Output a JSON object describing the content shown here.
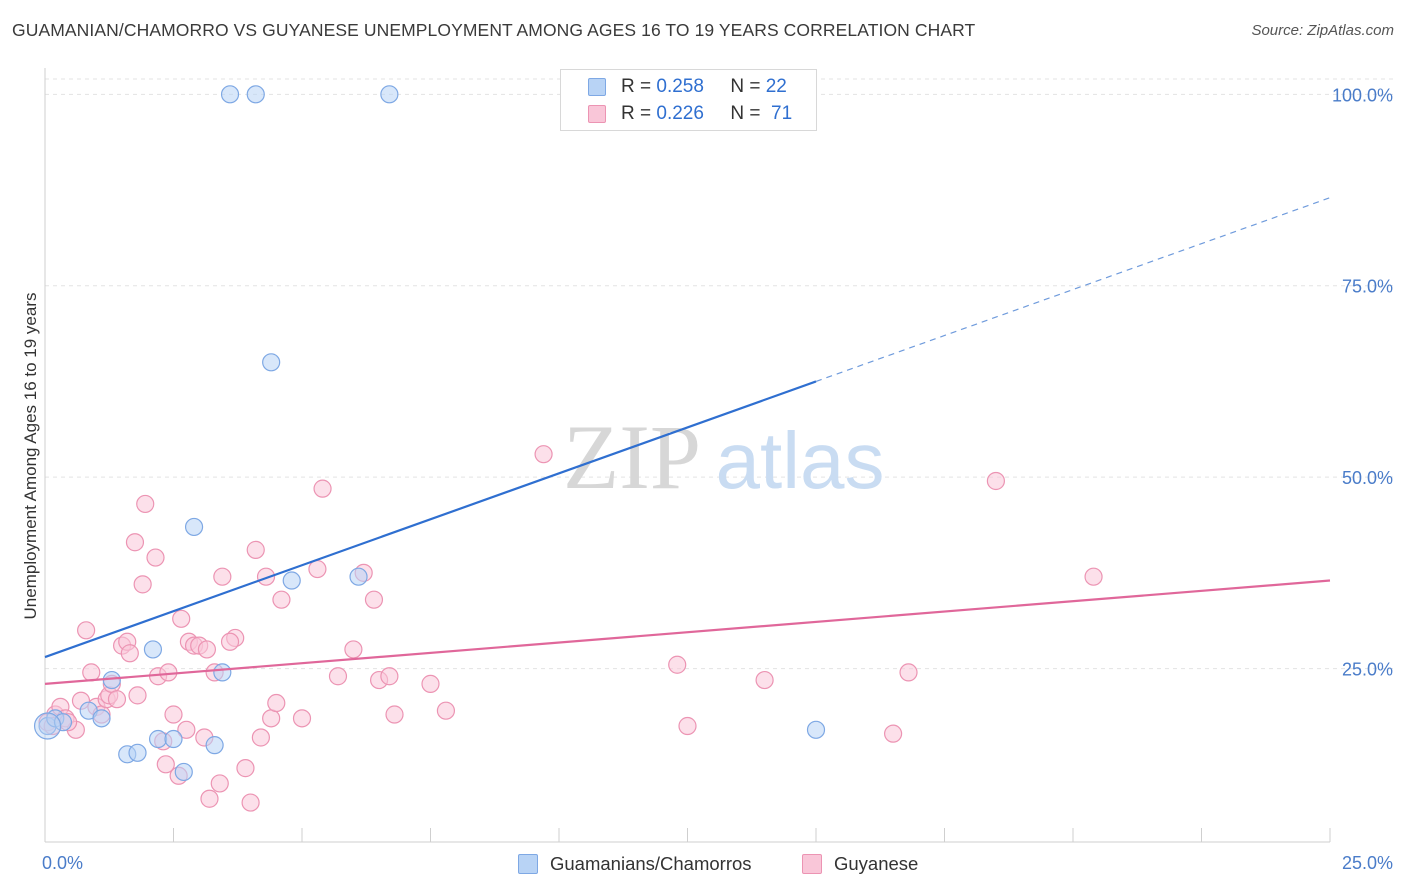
{
  "header": {
    "title": "GUAMANIAN/CHAMORRO VS GUYANESE UNEMPLOYMENT AMONG AGES 16 TO 19 YEARS CORRELATION CHART",
    "source": "Source: ZipAtlas.com"
  },
  "watermark": {
    "zip": "ZIP",
    "atlas": "atlas"
  },
  "legend": {
    "rows": [
      {
        "r_label": "R =",
        "r_value": "0.258",
        "n_label": "N =",
        "n_value": "22",
        "color": "#b8d3f5"
      },
      {
        "r_label": "R =",
        "r_value": "0.226",
        "n_label": "N =",
        "n_value": "71",
        "color": "#f9c6d8"
      }
    ]
  },
  "bottom_legend": {
    "series_a": "Guamanians/Chamorros",
    "series_b": "Guyanese"
  },
  "chart_data": {
    "type": "scatter",
    "title": "GUAMANIAN/CHAMORRO VS GUYANESE UNEMPLOYMENT AMONG AGES 16 TO 19 YEARS CORRELATION CHART",
    "xlabel": "",
    "ylabel": "Unemployment Among Ages 16 to 19 years",
    "xlim": [
      0,
      25
    ],
    "ylim": [
      0,
      102
    ],
    "x_tick_labels": [
      "0.0%",
      "25.0%"
    ],
    "y_ticks": [
      25,
      50,
      75,
      100
    ],
    "y_tick_labels": [
      "25.0%",
      "50.0%",
      "75.0%",
      "100.0%"
    ],
    "grid": true,
    "series": [
      {
        "name": "Guamanians/Chamorros",
        "color": "#7ea8e4",
        "fill": "#b8d3f5",
        "r": 0.258,
        "n": 22,
        "points": [
          [
            0.05,
            17.5
          ],
          [
            0.2,
            18.5
          ],
          [
            0.35,
            18.0
          ],
          [
            0.85,
            19.5
          ],
          [
            1.1,
            18.5
          ],
          [
            1.3,
            23.5
          ],
          [
            1.6,
            13.8
          ],
          [
            1.8,
            14.0
          ],
          [
            2.1,
            27.5
          ],
          [
            2.2,
            15.8
          ],
          [
            2.5,
            15.8
          ],
          [
            2.7,
            11.5
          ],
          [
            2.9,
            43.5
          ],
          [
            3.3,
            15.0
          ],
          [
            3.45,
            24.5
          ],
          [
            3.6,
            100
          ],
          [
            4.1,
            100
          ],
          [
            4.4,
            65
          ],
          [
            4.8,
            36.5
          ],
          [
            6.1,
            37.0
          ],
          [
            6.7,
            100
          ],
          [
            15.0,
            17.0
          ]
        ],
        "trend": {
          "x0": 0,
          "y0": 26.5,
          "x1": 15.0,
          "y1": 62.5,
          "x_dash_end": 25.0,
          "y_dash_end": 86.5
        }
      },
      {
        "name": "Guyanese",
        "color": "#ec94b3",
        "fill": "#f9c6d8",
        "r": 0.226,
        "n": 71,
        "points": [
          [
            0.05,
            18.0
          ],
          [
            0.2,
            19.0
          ],
          [
            0.3,
            20.0
          ],
          [
            0.4,
            18.5
          ],
          [
            0.6,
            17.0
          ],
          [
            0.7,
            20.8
          ],
          [
            0.8,
            30.0
          ],
          [
            0.9,
            24.5
          ],
          [
            1.0,
            20.0
          ],
          [
            1.1,
            19.0
          ],
          [
            1.2,
            21.0
          ],
          [
            1.25,
            21.5
          ],
          [
            1.3,
            23.0
          ],
          [
            1.4,
            21.0
          ],
          [
            1.5,
            28.0
          ],
          [
            1.6,
            28.5
          ],
          [
            1.65,
            27.0
          ],
          [
            1.75,
            41.5
          ],
          [
            1.8,
            21.5
          ],
          [
            1.9,
            36.0
          ],
          [
            1.95,
            46.5
          ],
          [
            2.15,
            39.5
          ],
          [
            2.2,
            24.0
          ],
          [
            2.3,
            15.5
          ],
          [
            2.35,
            12.5
          ],
          [
            2.5,
            19.0
          ],
          [
            2.6,
            11.0
          ],
          [
            2.65,
            31.5
          ],
          [
            2.75,
            17.0
          ],
          [
            2.8,
            28.5
          ],
          [
            2.9,
            28.0
          ],
          [
            3.0,
            28.0
          ],
          [
            3.1,
            16.0
          ],
          [
            3.15,
            27.5
          ],
          [
            3.2,
            8.0
          ],
          [
            3.3,
            24.5
          ],
          [
            3.4,
            10.0
          ],
          [
            3.45,
            37.0
          ],
          [
            3.7,
            29.0
          ],
          [
            3.9,
            12.0
          ],
          [
            4.0,
            7.5
          ],
          [
            4.1,
            40.5
          ],
          [
            4.2,
            16.0
          ],
          [
            4.3,
            37.0
          ],
          [
            4.4,
            18.5
          ],
          [
            4.5,
            20.5
          ],
          [
            4.6,
            34.0
          ],
          [
            5.0,
            18.5
          ],
          [
            5.3,
            38.0
          ],
          [
            5.4,
            48.5
          ],
          [
            5.7,
            24.0
          ],
          [
            6.0,
            27.5
          ],
          [
            6.2,
            37.5
          ],
          [
            6.4,
            34.0
          ],
          [
            6.5,
            23.5
          ],
          [
            6.7,
            24.0
          ],
          [
            6.8,
            19.0
          ],
          [
            7.5,
            23.0
          ],
          [
            7.8,
            19.5
          ],
          [
            9.7,
            53.0
          ],
          [
            12.3,
            25.5
          ],
          [
            12.5,
            17.5
          ],
          [
            14.0,
            23.5
          ],
          [
            16.5,
            16.5
          ],
          [
            16.8,
            24.5
          ],
          [
            18.5,
            49.5
          ],
          [
            20.4,
            37.0
          ],
          [
            0.15,
            17.5
          ],
          [
            0.45,
            18.0
          ],
          [
            2.4,
            24.5
          ],
          [
            3.6,
            28.5
          ]
        ],
        "trend": {
          "x0": 0,
          "y0": 23.0,
          "x1": 25.0,
          "y1": 36.5
        }
      }
    ]
  }
}
